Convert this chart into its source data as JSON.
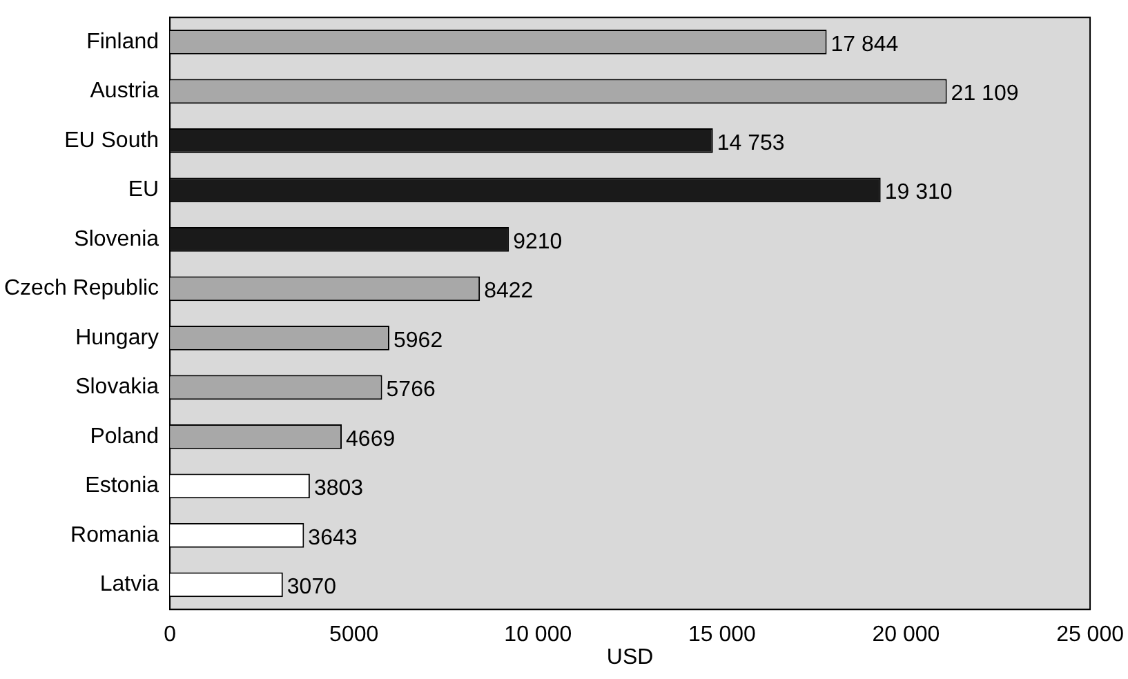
{
  "chart_data": {
    "type": "bar",
    "orientation": "horizontal",
    "xlabel": "USD",
    "categories": [
      "Finland",
      "Austria",
      "EU South",
      "EU",
      "Slovenia",
      "Czech Republic",
      "Hungary",
      "Slovakia",
      "Poland",
      "Estonia",
      "Romania",
      "Latvia"
    ],
    "values": [
      17844,
      21109,
      14753,
      19310,
      9210,
      8422,
      5962,
      5766,
      4669,
      3803,
      3643,
      3070
    ],
    "colors": [
      "#a8a8a8",
      "#a8a8a8",
      "#1a1a1a",
      "#1a1a1a",
      "#1a1a1a",
      "#a8a8a8",
      "#a8a8a8",
      "#a8a8a8",
      "#a8a8a8",
      "#ffffff",
      "#ffffff",
      "#ffffff"
    ],
    "value_labels": [
      "17 844",
      "21 109",
      "14 753",
      "19 310",
      "9210",
      "8422",
      "5962",
      "5766",
      "4669",
      "3803",
      "3643",
      "3070"
    ],
    "xlim": [
      0,
      25000
    ],
    "xticks": [
      0,
      5000,
      {
        "value": 10000,
        "label": "10 000"
      },
      {
        "value": 15000,
        "label": "15 000"
      },
      {
        "value": 20000,
        "label": "20 000"
      },
      {
        "value": 25000,
        "label": "25 000"
      }
    ],
    "grid": false,
    "legend": false
  }
}
